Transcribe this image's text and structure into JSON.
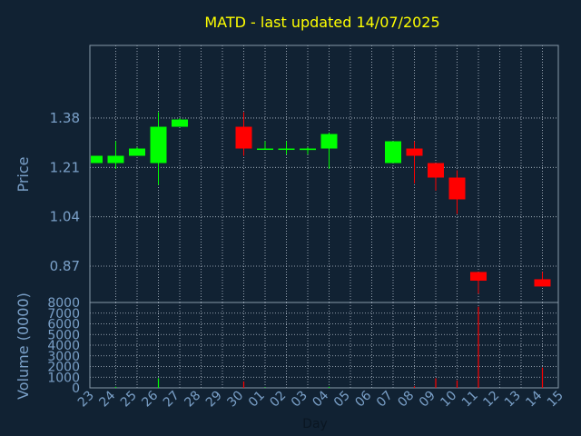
{
  "chart_data": [
    {
      "type": "candlestick",
      "title": "MATD - last updated 14/07/2025",
      "ylabel": "Price",
      "yticks": [
        "0.87",
        "1.04",
        "1.21",
        "1.38"
      ],
      "ylim": [
        0.745,
        1.63
      ],
      "grid": true,
      "x": [
        "23",
        "24",
        "25",
        "26",
        "27",
        "28",
        "29",
        "30",
        "01",
        "02",
        "03",
        "04",
        "05",
        "06",
        "07",
        "08",
        "09",
        "10",
        "11",
        "12",
        "13",
        "14",
        "15"
      ],
      "candles": [
        {
          "day": "23",
          "open": 1.225,
          "high": 1.25,
          "low": 1.225,
          "close": 1.25
        },
        {
          "day": "24",
          "open": 1.225,
          "high": 1.3,
          "low": 1.205,
          "close": 1.25
        },
        {
          "day": "25",
          "open": 1.25,
          "high": 1.28,
          "low": 1.25,
          "close": 1.275
        },
        {
          "day": "26",
          "open": 1.225,
          "high": 1.4,
          "low": 1.15,
          "close": 1.35
        },
        {
          "day": "27",
          "open": 1.35,
          "high": 1.38,
          "low": 1.35,
          "close": 1.375
        },
        {
          "day": "30",
          "open": 1.35,
          "high": 1.4,
          "low": 1.25,
          "close": 1.275
        },
        {
          "day": "01",
          "open": 1.275,
          "high": 1.3,
          "low": 1.275,
          "close": 1.275
        },
        {
          "day": "02",
          "open": 1.275,
          "high": 1.3,
          "low": 1.255,
          "close": 1.275
        },
        {
          "day": "03",
          "open": 1.27,
          "high": 1.28,
          "low": 1.255,
          "close": 1.275
        },
        {
          "day": "04",
          "open": 1.275,
          "high": 1.33,
          "low": 1.205,
          "close": 1.325
        },
        {
          "day": "07",
          "open": 1.225,
          "high": 1.3,
          "low": 1.225,
          "close": 1.3
        },
        {
          "day": "08",
          "open": 1.275,
          "high": 1.3,
          "low": 1.155,
          "close": 1.25
        },
        {
          "day": "09",
          "open": 1.225,
          "high": 1.225,
          "low": 1.13,
          "close": 1.175
        },
        {
          "day": "10",
          "open": 1.175,
          "high": 1.2,
          "low": 1.05,
          "close": 1.1
        },
        {
          "day": "11",
          "open": 0.85,
          "high": 0.85,
          "low": 0.775,
          "close": 0.82
        },
        {
          "day": "14",
          "open": 0.825,
          "high": 0.85,
          "low": 0.8,
          "close": 0.8
        }
      ],
      "up_color": "#00ff00",
      "down_color": "#ff0000"
    },
    {
      "type": "bar",
      "ylabel": "Volume (0000)",
      "xlabel": "Day",
      "yticks": [
        "0",
        "1000",
        "2000",
        "3000",
        "4000",
        "5000",
        "6000",
        "7000",
        "8000"
      ],
      "ylim": [
        0,
        8000
      ],
      "grid": true,
      "volumes": [
        {
          "day": "24",
          "value": 100,
          "color": "#00ff00"
        },
        {
          "day": "26",
          "value": 900,
          "color": "#00ff00"
        },
        {
          "day": "30",
          "value": 600,
          "color": "#ff0000"
        },
        {
          "day": "01",
          "value": 50,
          "color": "#00ff00"
        },
        {
          "day": "04",
          "value": 100,
          "color": "#00ff00"
        },
        {
          "day": "08",
          "value": 150,
          "color": "#ff0000"
        },
        {
          "day": "09",
          "value": 900,
          "color": "#ff0000"
        },
        {
          "day": "10",
          "value": 700,
          "color": "#ff0000"
        },
        {
          "day": "11",
          "value": 7600,
          "color": "#ff0000"
        },
        {
          "day": "14",
          "value": 1900,
          "color": "#ff0000"
        }
      ]
    }
  ],
  "colors": {
    "background": "#112233",
    "title": "#ffff00",
    "text": "#7aa0c8",
    "axis": "#8899aa",
    "grid": "#b8c4d0"
  }
}
